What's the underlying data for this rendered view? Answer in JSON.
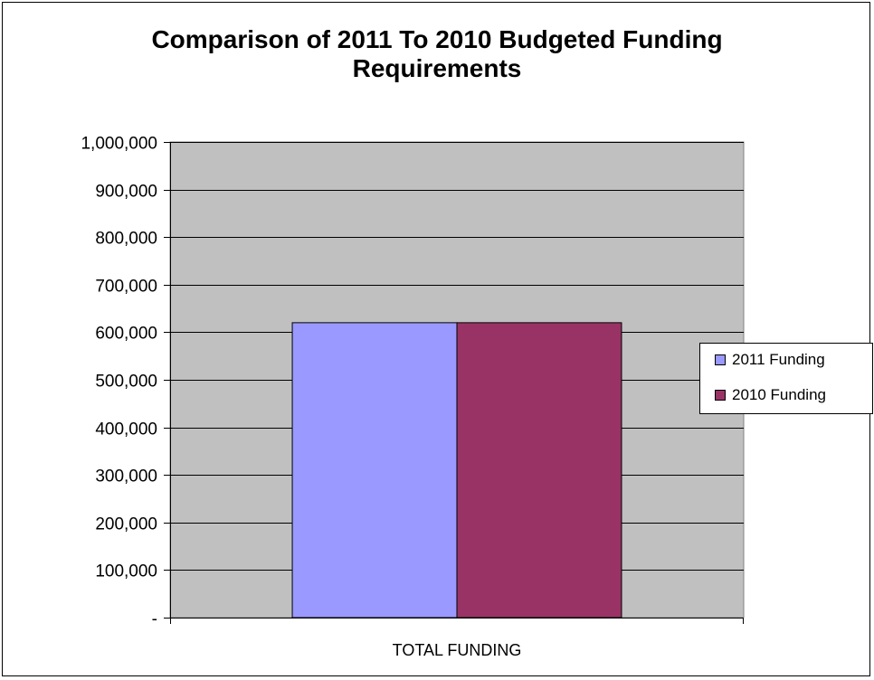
{
  "chart_data": {
    "type": "bar",
    "title_lines": [
      "Comparison of 2011 To 2010 Budgeted Funding",
      "Requirements"
    ],
    "categories": [
      "TOTAL FUNDING"
    ],
    "series": [
      {
        "name": "2011 Funding",
        "values": [
          620000
        ],
        "color": "#9999ff"
      },
      {
        "name": "2010 Funding",
        "values": [
          620000
        ],
        "color": "#993366"
      }
    ],
    "ylim": [
      0,
      1000000
    ],
    "y_ticks": [
      {
        "value": 0,
        "label": "-"
      },
      {
        "value": 100000,
        "label": "100,000"
      },
      {
        "value": 200000,
        "label": "200,000"
      },
      {
        "value": 300000,
        "label": "300,000"
      },
      {
        "value": 400000,
        "label": "400,000"
      },
      {
        "value": 500000,
        "label": "500,000"
      },
      {
        "value": 600000,
        "label": "600,000"
      },
      {
        "value": 700000,
        "label": "700,000"
      },
      {
        "value": 800000,
        "label": "800,000"
      },
      {
        "value": 900000,
        "label": "900,000"
      },
      {
        "value": 1000000,
        "label": "1,000,000"
      }
    ],
    "grid": true,
    "plot_background": "#c0c0c0",
    "legend_position": "right"
  }
}
